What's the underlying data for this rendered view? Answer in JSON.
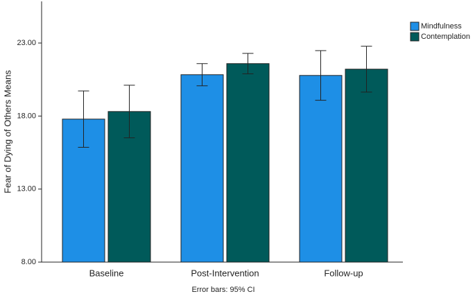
{
  "chart_data": {
    "type": "bar",
    "y_label": "Fear of Dying of Others  Means",
    "note": "Error bars: 95% CI",
    "categories": [
      "Baseline",
      "Post-Intervention",
      "Follow-up"
    ],
    "series": [
      {
        "name": "Mindfulness",
        "color": "#1e8fe6",
        "values": [
          17.79,
          20.83,
          20.78
        ],
        "errors": [
          1.93,
          0.76,
          1.7
        ]
      },
      {
        "name": "Contemplation",
        "color": "#005a5a",
        "values": [
          18.31,
          21.59,
          21.21
        ],
        "errors": [
          1.8,
          0.7,
          1.57
        ]
      }
    ],
    "ylim": [
      8,
      25.85
    ],
    "yticks": [
      {
        "value": 8,
        "label": "8.00"
      },
      {
        "value": 13,
        "label": "13.00"
      },
      {
        "value": 18,
        "label": "18.00"
      },
      {
        "value": 23,
        "label": "23.00"
      }
    ],
    "legend": "top-right"
  }
}
